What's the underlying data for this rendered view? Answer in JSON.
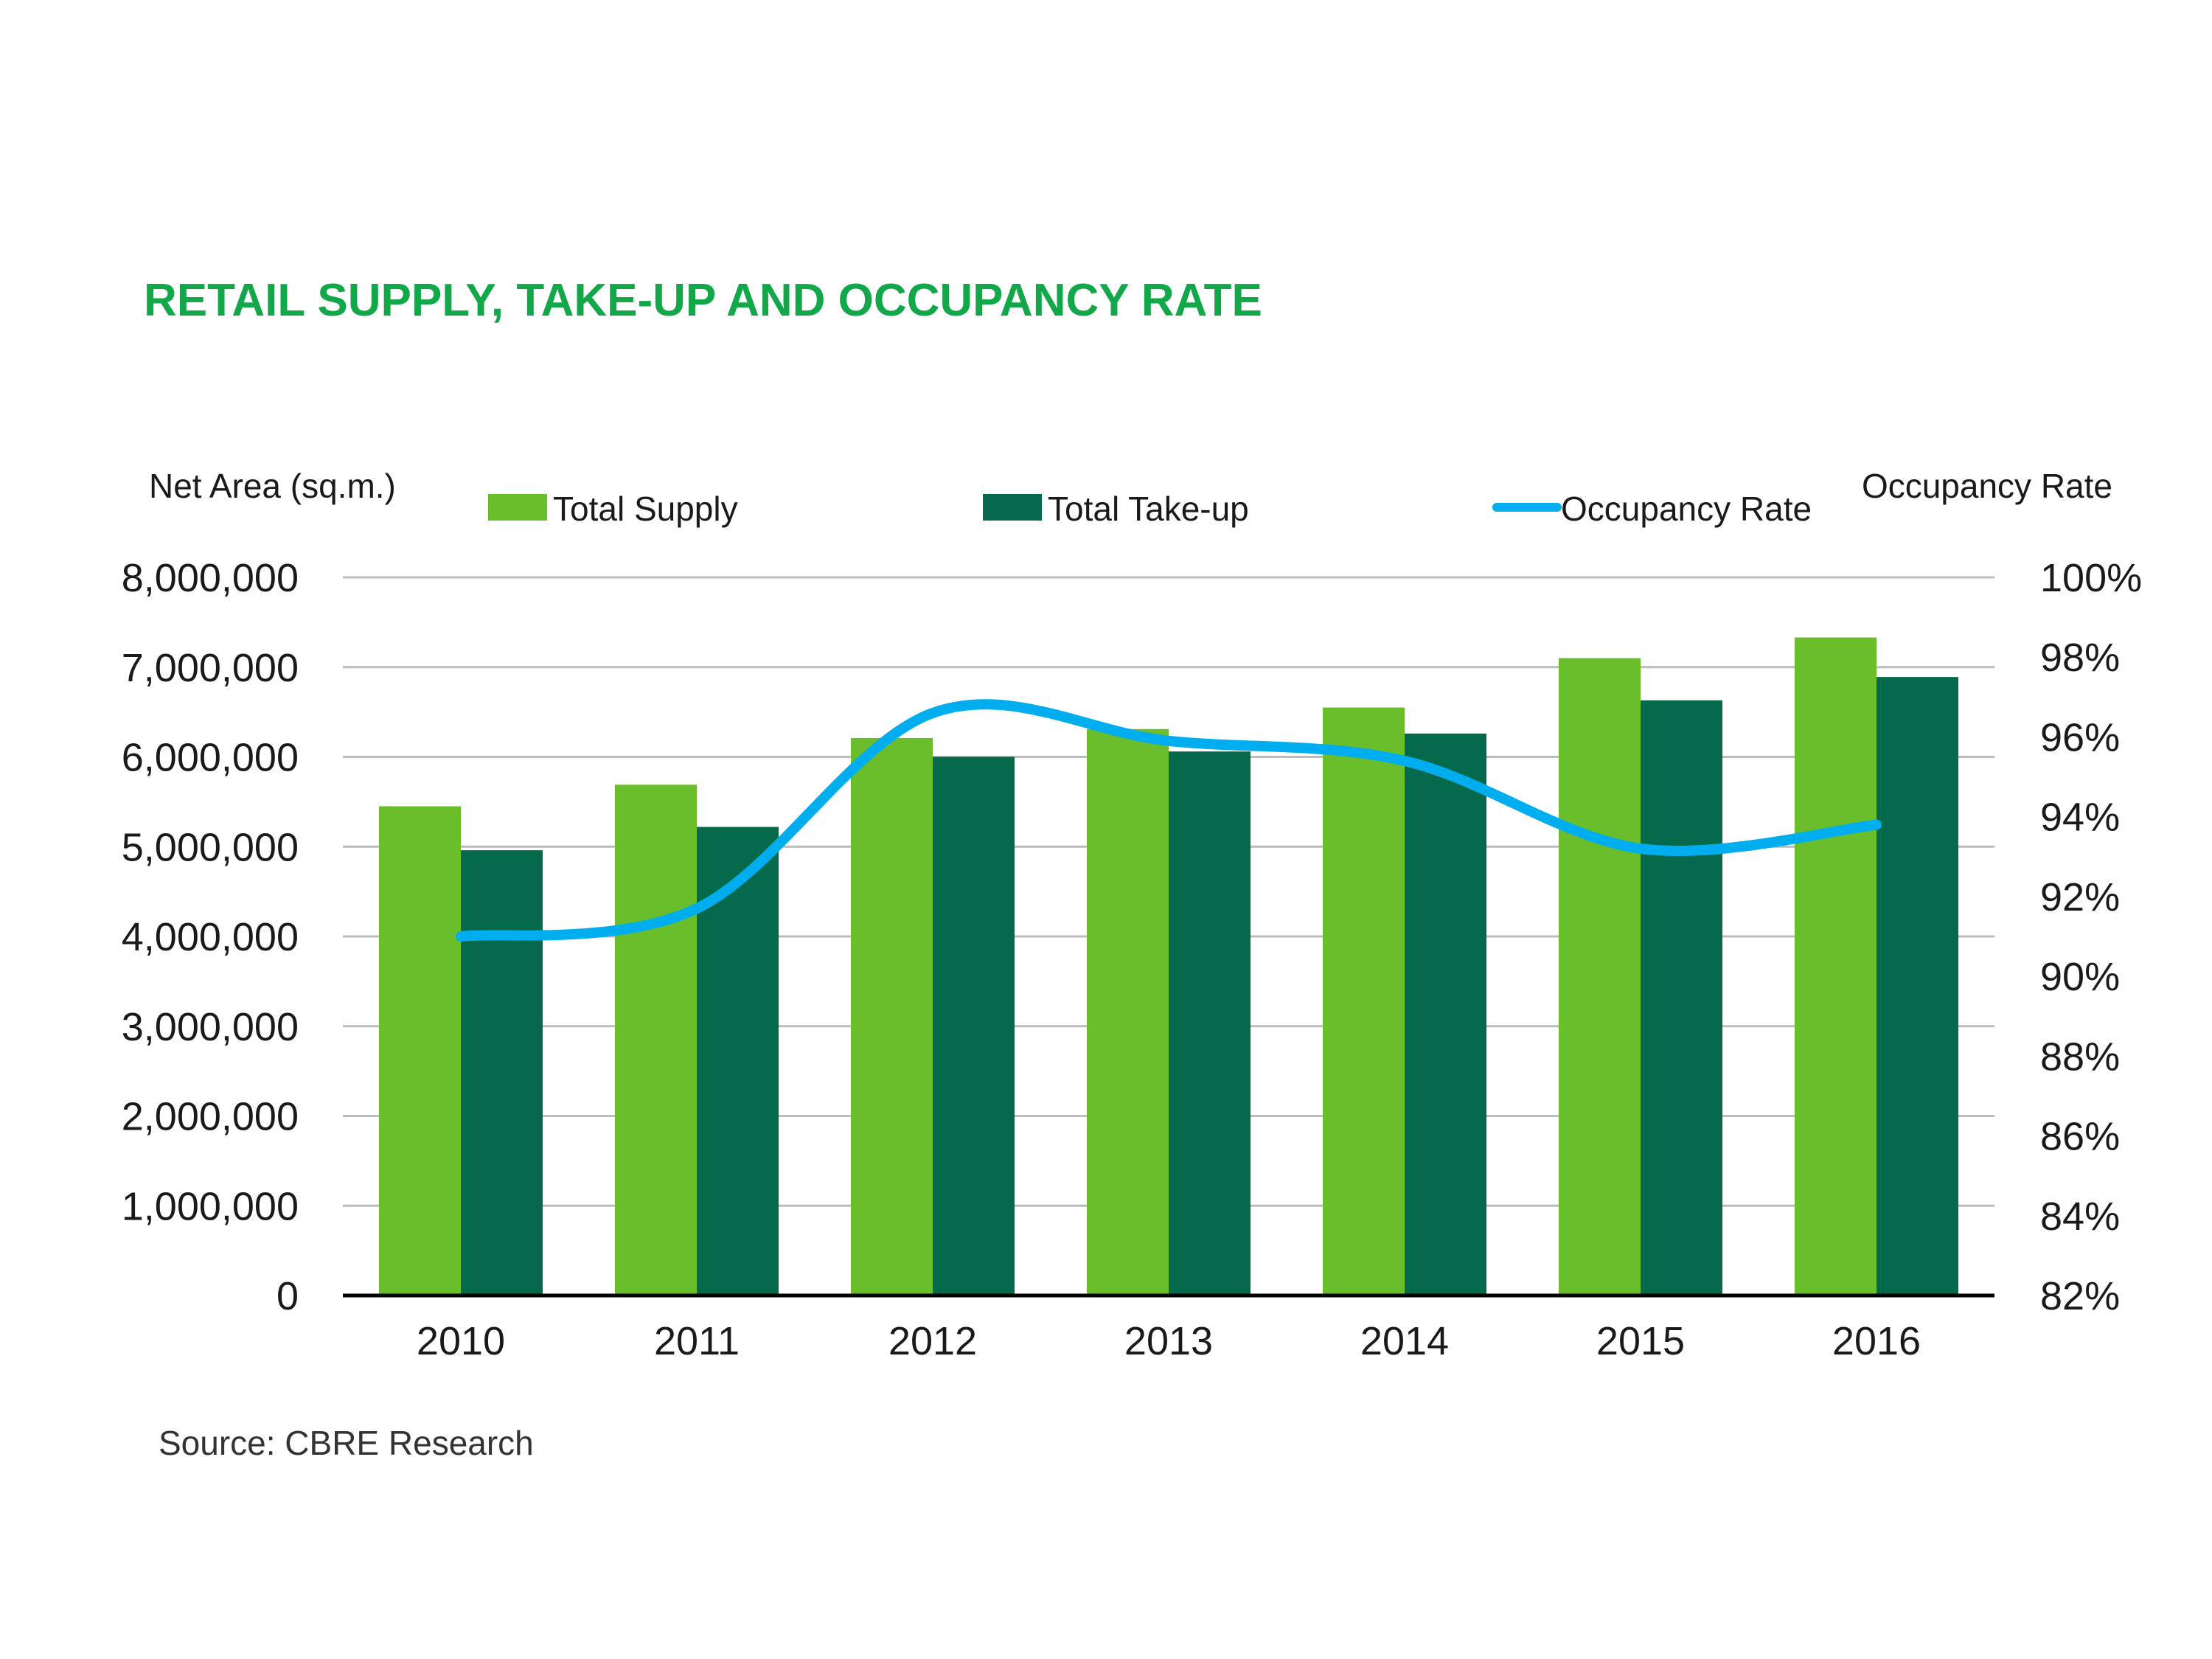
{
  "colors": {
    "title": "#12a84a",
    "supply": "#6abd2b",
    "takeup": "#046a4b",
    "occupancy": "#00aeef",
    "grid": "#bcbcbc",
    "axis": "#000000"
  },
  "chart_data": {
    "type": "bar",
    "title": "RETAIL SUPPLY, TAKE-UP AND OCCUPANCY RATE",
    "ylabel": "Net Area (sq.m.)",
    "y2label": "Occupancy Rate",
    "categories": [
      "2010",
      "2011",
      "2012",
      "2013",
      "2014",
      "2015",
      "2016"
    ],
    "ylim": [
      0,
      8000000
    ],
    "y2lim": [
      0.82,
      1.0
    ],
    "yticks": [
      "0",
      "1,000,000",
      "2,000,000",
      "3,000,000",
      "4,000,000",
      "5,000,000",
      "6,000,000",
      "7,000,000",
      "8,000,000"
    ],
    "y2ticks": [
      "82%",
      "84%",
      "86%",
      "88%",
      "90%",
      "92%",
      "94%",
      "96%",
      "98%",
      "100%"
    ],
    "grid": true,
    "legend_position": "top",
    "series": [
      {
        "name": "Total Supply",
        "type": "bar",
        "values": [
          5450000,
          5690000,
          6210000,
          6310000,
          6550000,
          7100000,
          7330000
        ]
      },
      {
        "name": "Total Take-up",
        "type": "bar",
        "values": [
          4960000,
          5220000,
          6000000,
          6060000,
          6260000,
          6630000,
          6890000
        ]
      },
      {
        "name": "Occupancy Rate",
        "type": "line",
        "axis": "right",
        "smooth": true,
        "values": [
          0.91,
          0.917,
          0.966,
          0.959,
          0.954,
          0.932,
          0.938
        ]
      }
    ]
  },
  "source": "Source: CBRE Research"
}
